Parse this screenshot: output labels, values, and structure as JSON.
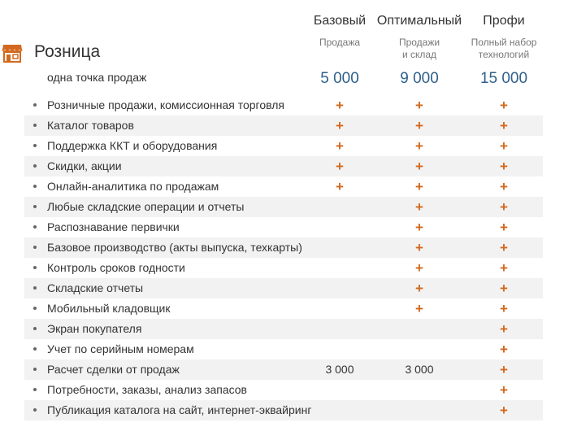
{
  "plans": [
    {
      "name": "Базовый",
      "description": "Продажа",
      "price": "5 000"
    },
    {
      "name": "Оптимальный",
      "description": "Продажи\nи склад",
      "price": "9 000"
    },
    {
      "name": "Профи",
      "description": "Полный набор\nтехнологий",
      "price": "15 000"
    }
  ],
  "section": {
    "icon": "store-icon",
    "title": "Розница",
    "subtitle": "одна точка продаж"
  },
  "accent_color": "#d2691e",
  "price_color": "#2f5f8a",
  "features": [
    {
      "label": "Розничные продажи, комиссионная торговля",
      "values": [
        "+",
        "+",
        "+"
      ]
    },
    {
      "label": "Каталог товаров",
      "values": [
        "+",
        "+",
        "+"
      ]
    },
    {
      "label": "Поддержка ККТ и оборудования",
      "values": [
        "+",
        "+",
        "+"
      ]
    },
    {
      "label": "Скидки, акции",
      "values": [
        "+",
        "+",
        "+"
      ]
    },
    {
      "label": "Онлайн-аналитика по продажам",
      "values": [
        "+",
        "+",
        "+"
      ]
    },
    {
      "label": "Любые складские операции и отчеты",
      "values": [
        "",
        "+",
        "+"
      ]
    },
    {
      "label": "Распознавание первички",
      "values": [
        "",
        "+",
        "+"
      ]
    },
    {
      "label": "Базовое производство (акты выпуска, техкарты)",
      "values": [
        "",
        "+",
        "+"
      ]
    },
    {
      "label": "Контроль сроков годности",
      "values": [
        "",
        "+",
        "+"
      ]
    },
    {
      "label": "Складские отчеты",
      "values": [
        "",
        "+",
        "+"
      ]
    },
    {
      "label": "Мобильный кладовщик",
      "values": [
        "",
        "+",
        "+"
      ]
    },
    {
      "label": "Экран покупателя",
      "values": [
        "",
        "",
        "+"
      ]
    },
    {
      "label": "Учет по серийным номерам",
      "values": [
        "",
        "",
        "+"
      ]
    },
    {
      "label": "Расчет сделки от продаж",
      "values": [
        "3 000",
        "3 000",
        "+"
      ]
    },
    {
      "label": "Потребности, заказы, анализ запасов",
      "values": [
        "",
        "",
        "+"
      ]
    },
    {
      "label": "Публикация каталога на сайт, интернет-эквайринг",
      "values": [
        "",
        "",
        "+"
      ]
    }
  ]
}
